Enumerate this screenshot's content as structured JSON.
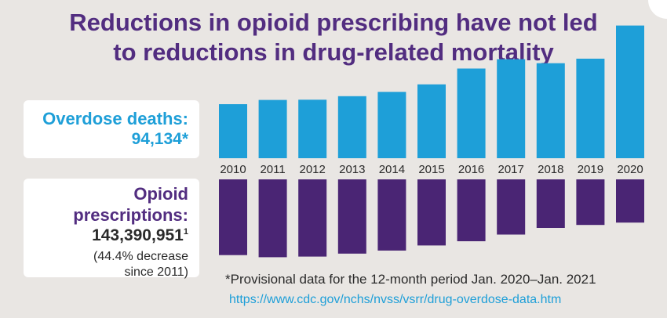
{
  "title": {
    "line1": "Reductions in opioid prescribing have not led",
    "line2": "to reductions in drug-related mortality"
  },
  "overdose_panel": {
    "label": "Overdose deaths:",
    "value": "94,134*"
  },
  "opioid_panel": {
    "label": "Opioid prescriptions:",
    "value": "143,390,951",
    "value_sup": "1",
    "note_line1": "(44.4% decrease",
    "note_line2": "since 2011)"
  },
  "footnote": "*Provisional data for the 12-month period Jan. 2020–Jan. 2021",
  "source_url": "https://www.cdc.gov/nchs/nvss/vsrr/drug-overdose-data.htm",
  "colors": {
    "deaths": "#1e9fd8",
    "prescriptions": "#4a2574",
    "title": "#522d80"
  },
  "chart_data": {
    "type": "bar",
    "categories": [
      "2010",
      "2011",
      "2012",
      "2013",
      "2014",
      "2015",
      "2016",
      "2017",
      "2018",
      "2019",
      "2020"
    ],
    "series": [
      {
        "values": [
          38329,
          41340,
          41502,
          43982,
          47055,
          52404,
          63632,
          70237,
          67367,
          70630,
          94134
        ],
        "direction": "up"
      },
      {
        "values": [
          251000000,
          258000000,
          256000000,
          246000000,
          236000000,
          219000000,
          205000000,
          183000000,
          161000000,
          151000000,
          143390951
        ],
        "direction": "down"
      }
    ],
    "ylim_deaths": [
      0,
      100000
    ],
    "ylim_prescriptions": [
      0,
      270000000
    ],
    "legend": "left"
  }
}
